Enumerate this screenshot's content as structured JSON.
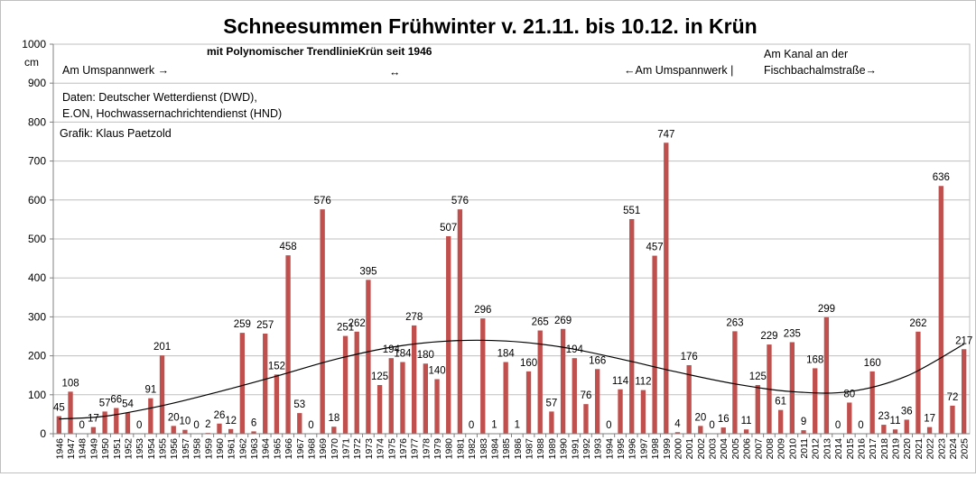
{
  "chart_data": {
    "type": "bar",
    "title": "Schneesummen  Frühwinter v. 21.11. bis 10.12.  in Krün",
    "subtitle": "mit Polynomischer TrendlinieKrün seit 1946",
    "ylabel": "cm",
    "ylim": [
      0,
      1000
    ],
    "yticks": [
      0,
      100,
      200,
      300,
      400,
      500,
      600,
      700,
      800,
      900,
      1000
    ],
    "grid": true,
    "bar_color": "#c0504d",
    "trend_color": "#000000",
    "annotations": {
      "station1": "Am Umspannwerk →",
      "arrow_mid": "↔",
      "station2": "←Am Umspannwerk  |",
      "station3_line1": "Am Kanal an der",
      "station3_line2": "Fischbachalmstraße→",
      "source_line1": "Daten: Deutscher Wetterdienst (DWD),",
      "source_line2": "E.ON, Hochwassernachrichtendienst (HND)",
      "credit": "Grafik: Klaus Paetzold"
    },
    "categories": [
      "1946",
      "1947",
      "1948",
      "1949",
      "1950",
      "1951",
      "1952",
      "1953",
      "1954",
      "1955",
      "1956",
      "1957",
      "1958",
      "1959",
      "1960",
      "1961",
      "1962",
      "1963",
      "1964",
      "1965",
      "1966",
      "1967",
      "1968",
      "1969",
      "1970",
      "1971",
      "1972",
      "1973",
      "1974",
      "1975",
      "1976",
      "1977",
      "1978",
      "1979",
      "1980",
      "1981",
      "1982",
      "1983",
      "1984",
      "1985",
      "1986",
      "1987",
      "1988",
      "1989",
      "1990",
      "1991",
      "1992",
      "1993",
      "1994",
      "1995",
      "1996",
      "1997",
      "1998",
      "1999",
      "2000",
      "2001",
      "2002",
      "2003",
      "2004",
      "2005",
      "2006",
      "2007",
      "2008",
      "2009",
      "2010",
      "2011",
      "2012",
      "2013",
      "2014",
      "2015",
      "2016",
      "2017",
      "2018",
      "2019",
      "2020",
      "2021",
      "2022",
      "2023",
      "2024",
      "2025"
    ],
    "values": [
      45,
      108,
      0,
      17,
      57,
      66,
      54,
      0,
      91,
      201,
      20,
      10,
      0,
      2,
      26,
      12,
      259,
      6,
      257,
      152,
      458,
      53,
      0,
      576,
      18,
      251,
      262,
      395,
      125,
      194,
      184,
      278,
      180,
      140,
      507,
      576,
      0,
      296,
      1,
      184,
      1,
      160,
      265,
      57,
      269,
      194,
      76,
      166,
      0,
      114,
      551,
      112,
      457,
      747,
      4,
      176,
      20,
      0,
      16,
      263,
      11,
      125,
      229,
      61,
      235,
      9,
      168,
      299,
      0,
      80,
      0,
      160,
      23,
      11,
      36,
      262,
      17,
      636,
      72,
      217
    ],
    "trendline": {
      "type": "polynomial",
      "x": [
        1946,
        1950,
        1955,
        1960,
        1965,
        1970,
        1975,
        1980,
        1985,
        1990,
        1995,
        2000,
        2005,
        2010,
        2015,
        2020,
        2025
      ],
      "y": [
        38,
        45,
        72,
        108,
        148,
        190,
        222,
        238,
        238,
        222,
        192,
        158,
        128,
        108,
        108,
        148,
        230
      ]
    }
  }
}
